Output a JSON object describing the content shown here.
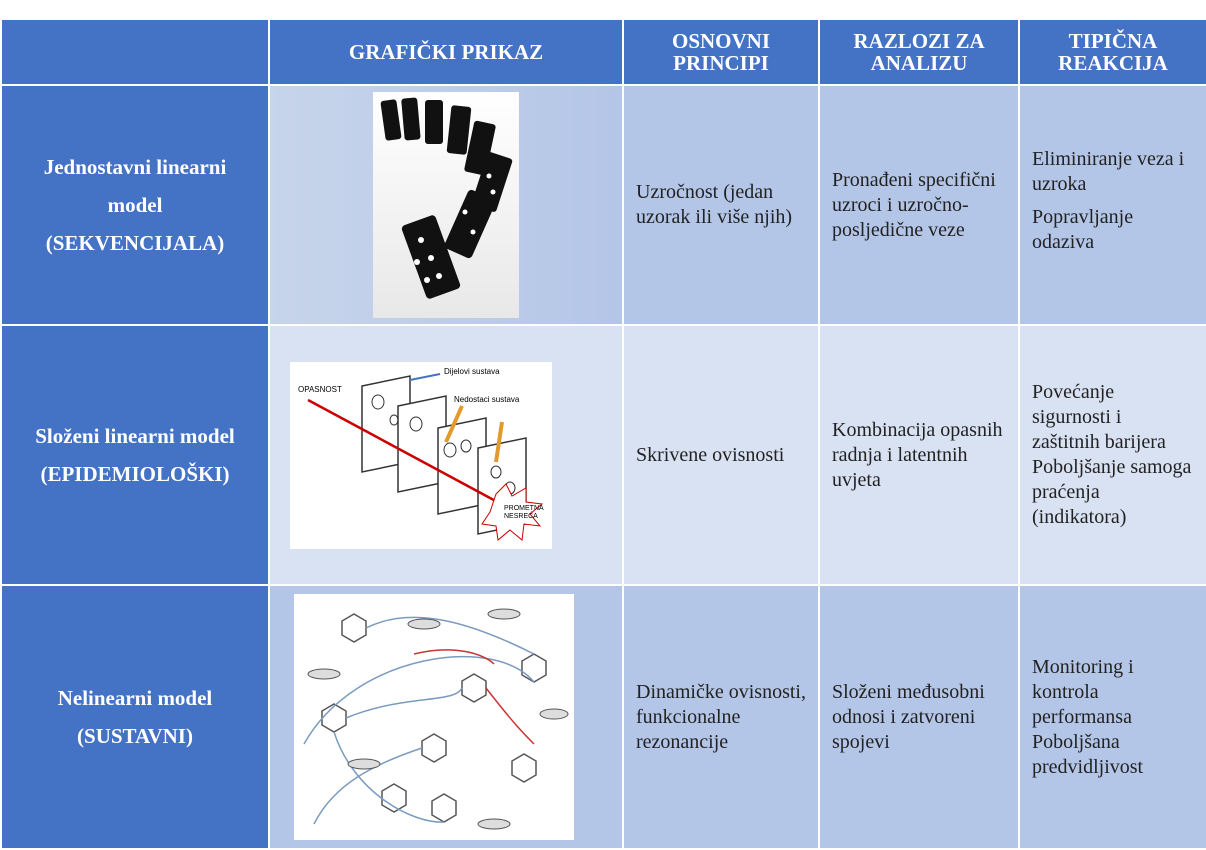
{
  "table": {
    "columns": [
      "GRAFIČKI PRIKAZ",
      "OSNOVNI PRINCIPI",
      "RAZLOZI ZA ANALIZU",
      "TIPIČNA REAKCIJA"
    ],
    "rows": [
      {
        "model": [
          "Jednostavni linearni model",
          "(SEKVENCIJALA)"
        ],
        "principles": "Uzročnost (jedan uzorak ili više njih)",
        "reasons": "Pronađeni specifični uzroci i uzročno-posljedične veze",
        "reactions": [
          "Eliminiranje veza i uzroka",
          "Popravljanje odaziva"
        ]
      },
      {
        "model": [
          "Složeni linearni model",
          "(EPIDEMIOLOŠKI)"
        ],
        "figure_labels": [
          "OPASNOST",
          "Dijelovi sustava",
          "Nedostaci sustava",
          "PROMETNA",
          "NESREĆA"
        ],
        "principles": "Skrivene ovisnosti",
        "reasons": "Kombinacija opasnih radnja i latentnih uvjeta",
        "reactions": [
          "Povećanje sigurnosti i zaštitnih barijera",
          "Poboljšanje samoga praćenja (indikatora)"
        ]
      },
      {
        "model": [
          "Nelinearni model",
          "(SUSTAVNI)"
        ],
        "principles": "Dinamičke ovisnosti, funkcionalne rezonancije",
        "reasons": "Složeni međusobni odnosi i zatvoreni spojevi",
        "reactions": [
          "Monitoring i kontrola performansa",
          "Poboljšana predvidljivost"
        ]
      }
    ]
  }
}
